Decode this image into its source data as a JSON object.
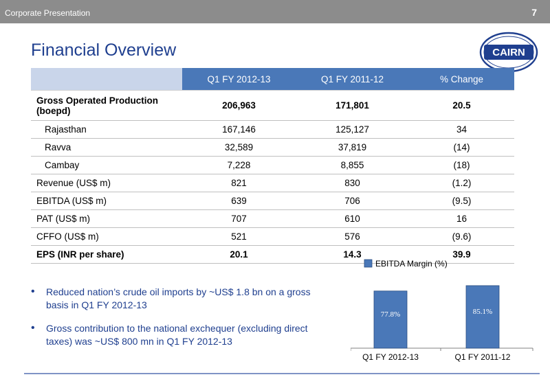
{
  "header": {
    "left_text": "Corporate Presentation",
    "page_number": "7"
  },
  "title": "Financial Overview",
  "logo": {
    "text": "CAIRN",
    "colors": {
      "primary": "#1f3f8f"
    }
  },
  "table": {
    "columns": [
      "",
      "Q1 FY 2012-13",
      "Q1 FY 2011-12",
      "% Change"
    ],
    "rows": [
      {
        "label": "Gross Operated Production (boepd)",
        "v1": "206,963",
        "v2": "171,801",
        "v3": "20.5"
      },
      {
        "label": "Rajasthan",
        "v1": "167,146",
        "v2": "125,127",
        "v3": "34"
      },
      {
        "label": "Ravva",
        "v1": "32,589",
        "v2": "37,819",
        "v3": "(14)"
      },
      {
        "label": "Cambay",
        "v1": "7,228",
        "v2": "8,855",
        "v3": "(18)"
      },
      {
        "label": "Revenue (US$ m)",
        "v1": "821",
        "v2": "830",
        "v3": "(1.2)"
      },
      {
        "label": "EBITDA (US$ m)",
        "v1": "639",
        "v2": "706",
        "v3": "(9.5)"
      },
      {
        "label": "PAT (US$ m)",
        "v1": "707",
        "v2": "610",
        "v3": "16"
      },
      {
        "label": "CFFO (US$ m)",
        "v1": "521",
        "v2": "576",
        "v3": "(9.6)"
      },
      {
        "label": "EPS (INR per share)",
        "v1": "20.1",
        "v2": "14.3",
        "v3": "39.9"
      }
    ]
  },
  "bullets": [
    "Reduced  nation’s crude oil imports by ~US$ 1.8 bn on a gross basis in Q1 FY 2012-13",
    "Gross contribution to the national exchequer (excluding direct taxes) was ~US$ 800 mn in Q1 FY 2012-13"
  ],
  "colors": {
    "header_bar": "#8c8c8c",
    "table_header": "#4a78b8",
    "bar": "#4a78b8",
    "title": "#1f3f8f"
  },
  "chart_data": {
    "type": "bar",
    "categories": [
      "Q1 FY 2012-13",
      "Q1 FY 2011-12"
    ],
    "series": [
      {
        "name": "EBITDA Margin (%)",
        "values": [
          77.8,
          85.1
        ]
      }
    ],
    "data_labels": [
      "77.8%",
      "85.1%"
    ],
    "legend": "top",
    "ylim": [
      0,
      100
    ],
    "grid": false
  }
}
